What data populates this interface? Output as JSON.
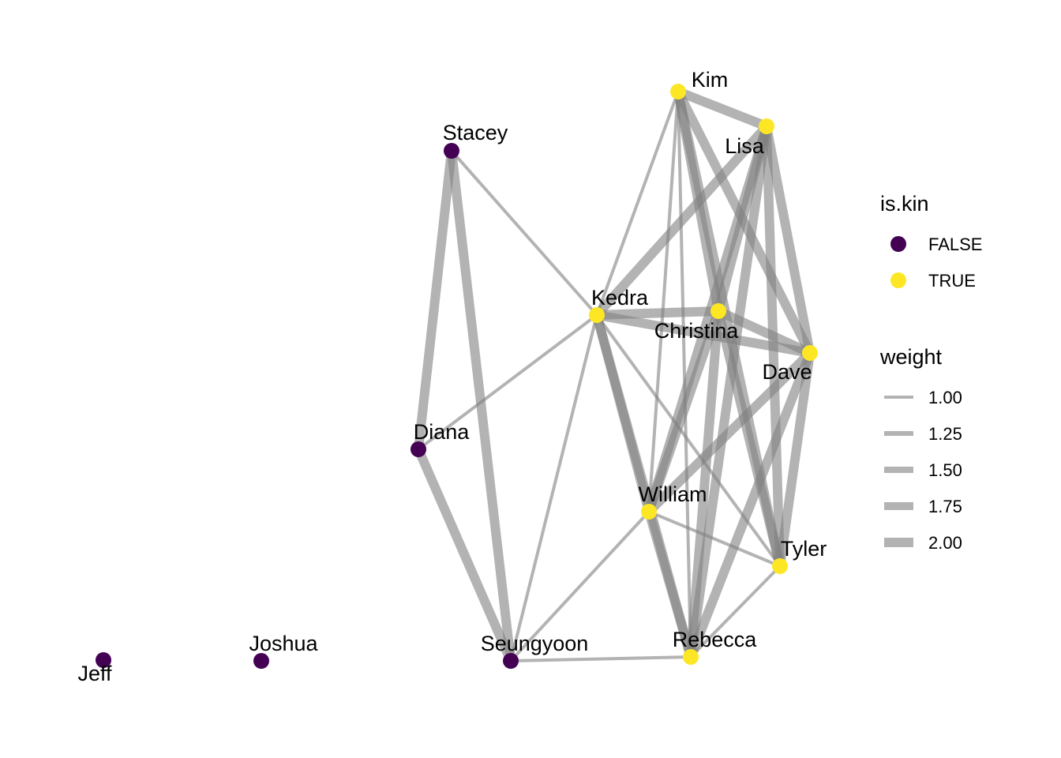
{
  "colors": {
    "kin_false": "#440154",
    "kin_true": "#FDE725",
    "edge": "#808080"
  },
  "nodes": [
    {
      "id": "Kim",
      "is_kin": true
    },
    {
      "id": "Lisa",
      "is_kin": true
    },
    {
      "id": "Stacey",
      "is_kin": false
    },
    {
      "id": "Kedra",
      "is_kin": true
    },
    {
      "id": "Christina",
      "is_kin": true
    },
    {
      "id": "Dave",
      "is_kin": true
    },
    {
      "id": "Diana",
      "is_kin": false
    },
    {
      "id": "William",
      "is_kin": true
    },
    {
      "id": "Tyler",
      "is_kin": true
    },
    {
      "id": "Seungyoon",
      "is_kin": false
    },
    {
      "id": "Rebecca",
      "is_kin": true
    },
    {
      "id": "Joshua",
      "is_kin": false
    },
    {
      "id": "Jeff",
      "is_kin": false
    }
  ],
  "edges": [
    {
      "source": "Stacey",
      "target": "Diana",
      "weight": 2
    },
    {
      "source": "Stacey",
      "target": "Seungyoon",
      "weight": 2
    },
    {
      "source": "Stacey",
      "target": "Kedra",
      "weight": 1
    },
    {
      "source": "Diana",
      "target": "Seungyoon",
      "weight": 2
    },
    {
      "source": "Diana",
      "target": "Kedra",
      "weight": 1
    },
    {
      "source": "Seungyoon",
      "target": "Kedra",
      "weight": 1
    },
    {
      "source": "Seungyoon",
      "target": "William",
      "weight": 1
    },
    {
      "source": "Seungyoon",
      "target": "Rebecca",
      "weight": 1
    },
    {
      "source": "Kim",
      "target": "Lisa",
      "weight": 2
    },
    {
      "source": "Kim",
      "target": "Kedra",
      "weight": 1
    },
    {
      "source": "Kim",
      "target": "Christina",
      "weight": 2
    },
    {
      "source": "Kim",
      "target": "Dave",
      "weight": 2
    },
    {
      "source": "Kim",
      "target": "William",
      "weight": 1
    },
    {
      "source": "Kim",
      "target": "Tyler",
      "weight": 2
    },
    {
      "source": "Kim",
      "target": "Rebecca",
      "weight": 1
    },
    {
      "source": "Lisa",
      "target": "Kedra",
      "weight": 2
    },
    {
      "source": "Lisa",
      "target": "Christina",
      "weight": 2
    },
    {
      "source": "Lisa",
      "target": "Dave",
      "weight": 2
    },
    {
      "source": "Lisa",
      "target": "William",
      "weight": 2
    },
    {
      "source": "Lisa",
      "target": "Tyler",
      "weight": 2
    },
    {
      "source": "Lisa",
      "target": "Rebecca",
      "weight": 2
    },
    {
      "source": "Kedra",
      "target": "Christina",
      "weight": 2
    },
    {
      "source": "Kedra",
      "target": "Dave",
      "weight": 2
    },
    {
      "source": "Kedra",
      "target": "William",
      "weight": 2
    },
    {
      "source": "Kedra",
      "target": "Rebecca",
      "weight": 2
    },
    {
      "source": "Kedra",
      "target": "Tyler",
      "weight": 1
    },
    {
      "source": "Christina",
      "target": "Dave",
      "weight": 2
    },
    {
      "source": "Christina",
      "target": "William",
      "weight": 2
    },
    {
      "source": "Christina",
      "target": "Rebecca",
      "weight": 2
    },
    {
      "source": "Christina",
      "target": "Tyler",
      "weight": 2
    },
    {
      "source": "Dave",
      "target": "William",
      "weight": 2
    },
    {
      "source": "Dave",
      "target": "Rebecca",
      "weight": 2
    },
    {
      "source": "Dave",
      "target": "Tyler",
      "weight": 2
    },
    {
      "source": "William",
      "target": "Rebecca",
      "weight": 2
    },
    {
      "source": "William",
      "target": "Tyler",
      "weight": 1
    },
    {
      "source": "Rebecca",
      "target": "Tyler",
      "weight": 1
    }
  ],
  "legend": {
    "kin": {
      "title": "is.kin",
      "entries": [
        {
          "label": "FALSE",
          "is_kin": false
        },
        {
          "label": "TRUE",
          "is_kin": true
        }
      ]
    },
    "weight": {
      "title": "weight",
      "entries": [
        {
          "label": "1.00",
          "value": 1.0
        },
        {
          "label": "1.25",
          "value": 1.25
        },
        {
          "label": "1.50",
          "value": 1.5
        },
        {
          "label": "1.75",
          "value": 1.75
        },
        {
          "label": "2.00",
          "value": 2.0
        }
      ]
    }
  }
}
